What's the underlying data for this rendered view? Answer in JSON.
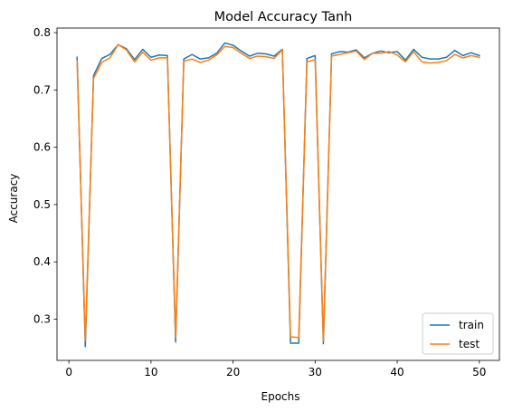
{
  "chart_data": {
    "type": "line",
    "title": "Model Accuracy Tanh",
    "xlabel": "Epochs",
    "ylabel": "Accuracy",
    "xlim": [
      -1.45,
      52.45
    ],
    "ylim": [
      0.228,
      0.808
    ],
    "xticks": [
      0,
      10,
      20,
      30,
      40,
      50
    ],
    "yticks": [
      0.3,
      0.4,
      0.5,
      0.6,
      0.7,
      0.8
    ],
    "xtick_labels": [
      "0",
      "10",
      "20",
      "30",
      "40",
      "50"
    ],
    "ytick_labels": [
      "0.3",
      "0.4",
      "0.5",
      "0.6",
      "0.7",
      "0.8"
    ],
    "grid": false,
    "legend_position": "lower right",
    "x": [
      1,
      2,
      3,
      4,
      5,
      6,
      7,
      8,
      9,
      10,
      11,
      12,
      13,
      14,
      15,
      16,
      17,
      18,
      19,
      20,
      21,
      22,
      23,
      24,
      25,
      26,
      27,
      28,
      29,
      30,
      31,
      32,
      33,
      34,
      35,
      36,
      37,
      38,
      39,
      40,
      41,
      42,
      43,
      44,
      45,
      46,
      47,
      48,
      49,
      50
    ],
    "series": [
      {
        "name": "train",
        "color": "#1f77b4",
        "values": [
          0.757,
          0.252,
          0.725,
          0.755,
          0.762,
          0.779,
          0.772,
          0.753,
          0.771,
          0.757,
          0.761,
          0.76,
          0.26,
          0.754,
          0.762,
          0.754,
          0.756,
          0.764,
          0.782,
          0.778,
          0.768,
          0.759,
          0.764,
          0.763,
          0.759,
          0.771,
          0.258,
          0.258,
          0.755,
          0.76,
          0.257,
          0.763,
          0.767,
          0.766,
          0.77,
          0.756,
          0.764,
          0.768,
          0.765,
          0.767,
          0.752,
          0.771,
          0.757,
          0.754,
          0.754,
          0.757,
          0.769,
          0.76,
          0.765,
          0.76
        ]
      },
      {
        "name": "test",
        "color": "#ff7f0e",
        "values": [
          0.75,
          0.262,
          0.72,
          0.748,
          0.756,
          0.779,
          0.77,
          0.749,
          0.766,
          0.752,
          0.756,
          0.756,
          0.268,
          0.75,
          0.754,
          0.748,
          0.752,
          0.761,
          0.776,
          0.774,
          0.764,
          0.755,
          0.759,
          0.758,
          0.755,
          0.77,
          0.269,
          0.268,
          0.749,
          0.753,
          0.262,
          0.759,
          0.762,
          0.765,
          0.768,
          0.753,
          0.764,
          0.764,
          0.767,
          0.761,
          0.749,
          0.767,
          0.749,
          0.747,
          0.748,
          0.751,
          0.762,
          0.756,
          0.76,
          0.757
        ]
      }
    ]
  }
}
